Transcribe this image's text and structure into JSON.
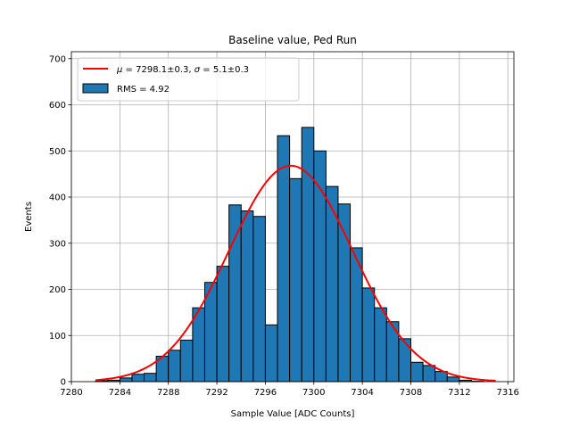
{
  "chart_data": {
    "type": "bar",
    "title": "Baseline value, Ped Run",
    "xlabel": "Sample Value [ADC Counts]",
    "ylabel": "Events",
    "xlim": [
      7280,
      7316.5
    ],
    "ylim": [
      0,
      715
    ],
    "xticks": [
      7280,
      7284,
      7288,
      7292,
      7296,
      7300,
      7304,
      7308,
      7312,
      7316
    ],
    "yticks": [
      0,
      100,
      200,
      300,
      400,
      500,
      600,
      700
    ],
    "grid": true,
    "legend_position": "top-left",
    "histogram": {
      "name": "RMS = 4.92",
      "bin_edges": [
        7282.0,
        7283.0,
        7284.0,
        7285.0,
        7286.0,
        7287.0,
        7288.0,
        7289.0,
        7290.0,
        7291.0,
        7292.0,
        7293.0,
        7294.0,
        7295.0,
        7296.0,
        7297.0,
        7298.0,
        7299.0,
        7300.0,
        7301.0,
        7302.0,
        7303.0,
        7304.0,
        7305.0,
        7306.0,
        7307.0,
        7308.0,
        7309.0,
        7310.0,
        7311.0,
        7312.0,
        7313.0,
        7314.0
      ],
      "counts": [
        2,
        3,
        8,
        16,
        18,
        55,
        68,
        90,
        160,
        215,
        250,
        383,
        370,
        358,
        123,
        533,
        440,
        551,
        500,
        423,
        385,
        290,
        203,
        160,
        130,
        93,
        42,
        35,
        22,
        10,
        3,
        1
      ],
      "color": "#1f77b4",
      "edgecolor": "#000000"
    },
    "fit": {
      "name": "$\\mu = 7298.1 \\pm 0.3, \\sigma = 5.1 \\pm 0.3$",
      "label_parts": [
        "μ",
        " = 7298.1±0.3, ",
        "σ",
        " = 5.1±0.3"
      ],
      "mu": 7298.1,
      "sigma": 5.1,
      "amplitude": 468,
      "x_range": [
        7282.0,
        7315.0
      ],
      "color": "#ff0000"
    }
  }
}
